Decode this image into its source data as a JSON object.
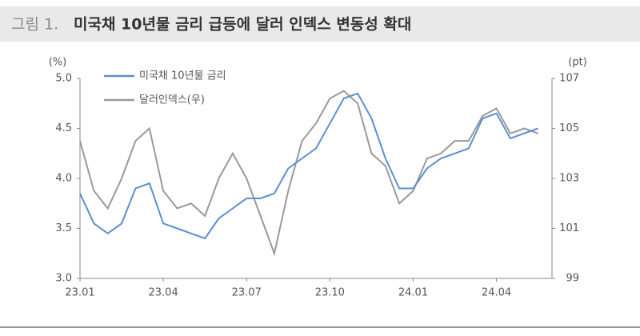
{
  "chart_data": {
    "type": "line",
    "title": "그림 1.",
    "subtitle": "미국채 10년물 금리 급등에 달러 인덱스 변동성 확대",
    "y_label": "(%)",
    "y2_label": "(pt)",
    "x": [
      0,
      0.5,
      1,
      1.5,
      2,
      2.5,
      3,
      3.5,
      4,
      4.5,
      5,
      5.5,
      6,
      6.5,
      7,
      7.5,
      8,
      8.5,
      9,
      9.5,
      10,
      10.5,
      11,
      11.5,
      12,
      12.5,
      13,
      13.5,
      14,
      14.5,
      15,
      15.5,
      16,
      16.5
    ],
    "xlim": [
      0,
      17
    ],
    "xticks": [
      {
        "value": 0,
        "label": "23.01"
      },
      {
        "value": 3,
        "label": "23.04"
      },
      {
        "value": 6,
        "label": "23.07"
      },
      {
        "value": 9,
        "label": "23.10"
      },
      {
        "value": 12,
        "label": "24.01"
      },
      {
        "value": 15,
        "label": "24.04"
      }
    ],
    "ylim": [
      3,
      5
    ],
    "yticks": [
      {
        "value": 3,
        "label": "3.0"
      },
      3.5,
      {
        "value": 4,
        "label": "4.0"
      },
      4.5,
      {
        "value": 5,
        "label": "5.0"
      }
    ],
    "y2lim": [
      99,
      107
    ],
    "y2ticks": [
      99,
      101,
      103,
      105,
      107
    ],
    "series": [
      {
        "name": "미국채 10년물 금리",
        "color": "#5b8fd0",
        "values": [
          3.85,
          3.55,
          3.45,
          3.55,
          3.9,
          3.95,
          3.55,
          3.5,
          3.45,
          3.4,
          3.6,
          3.7,
          3.8,
          3.8,
          3.85,
          4.1,
          4.2,
          4.3,
          4.55,
          4.8,
          4.85,
          4.6,
          4.2,
          3.9,
          3.9,
          4.1,
          4.2,
          4.25,
          4.3,
          4.6,
          4.65,
          4.4,
          4.45,
          4.5
        ]
      },
      {
        "name": "달러인덱스(우)",
        "color": "#999999",
        "axis": "y2",
        "values": [
          104.5,
          102.5,
          101.8,
          103,
          104.5,
          105,
          102.5,
          101.8,
          102,
          101.5,
          103,
          104,
          103,
          101.5,
          100,
          102.5,
          104.5,
          105.2,
          106.2,
          106.5,
          106,
          104,
          103.5,
          102,
          102.5,
          103.8,
          104,
          104.5,
          104.5,
          105.5,
          105.8,
          104.8,
          105,
          104.8
        ]
      }
    ]
  }
}
